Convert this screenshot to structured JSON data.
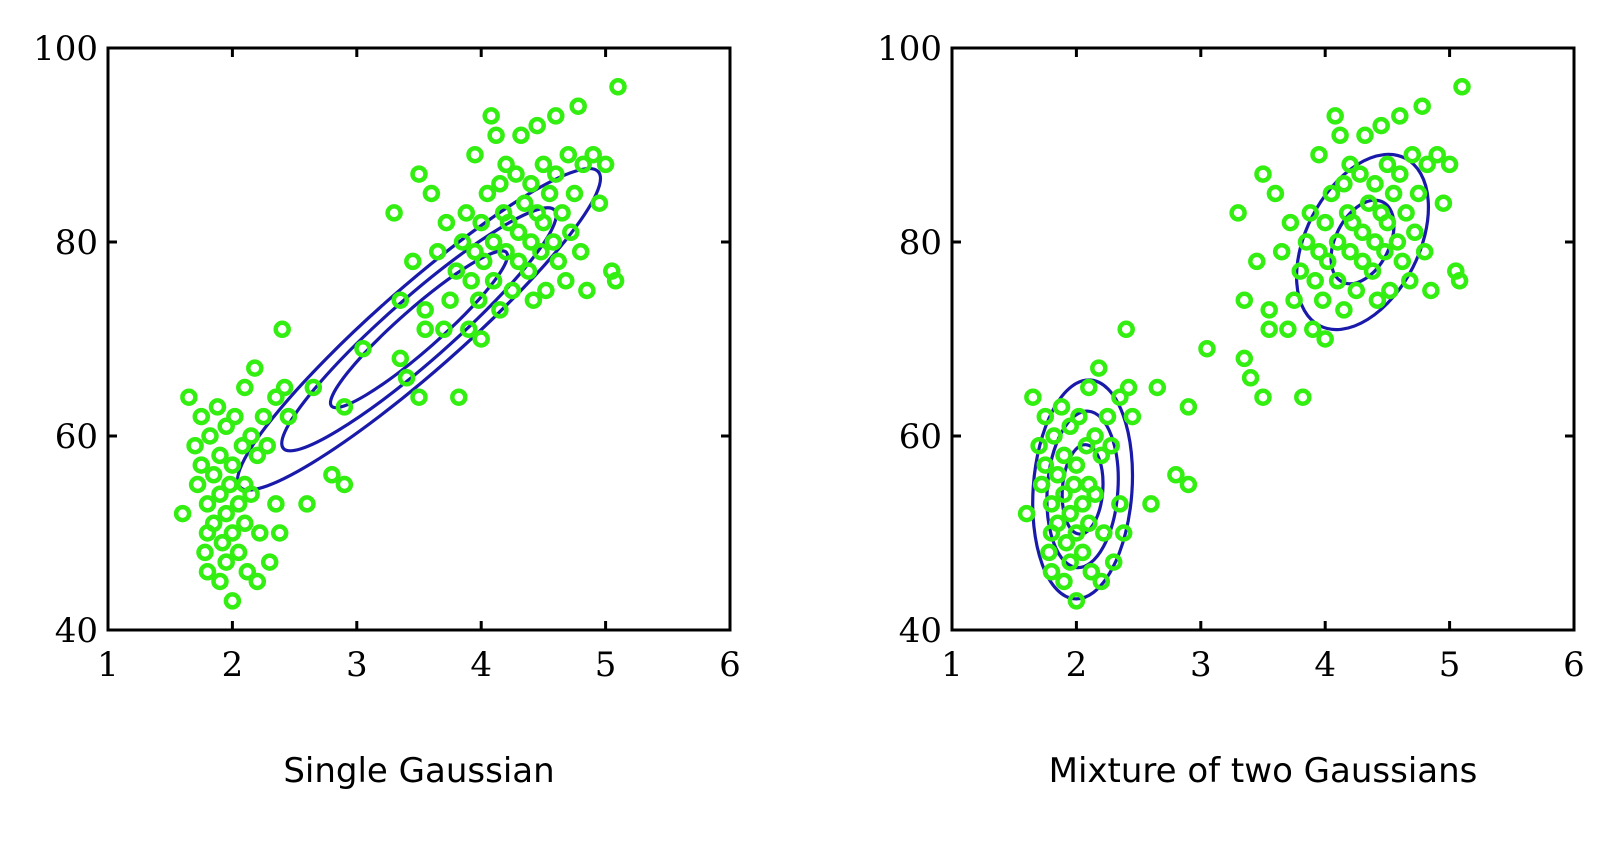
{
  "colors": {
    "points": "#33ee11",
    "contours": "#1a1aaa",
    "axes": "#000000",
    "background": "#ffffff"
  },
  "chart_data": [
    {
      "type": "scatter",
      "title": "",
      "caption": "Single Gaussian",
      "xlabel": "",
      "ylabel": "",
      "xlim": [
        1,
        6
      ],
      "ylim": [
        40,
        100
      ],
      "xticks": [
        1,
        2,
        3,
        4,
        5,
        6
      ],
      "yticks": [
        40,
        60,
        80,
        100
      ],
      "grid": false,
      "legend": "none",
      "points": [
        [
          1.6,
          52
        ],
        [
          1.65,
          64
        ],
        [
          1.7,
          59
        ],
        [
          1.72,
          55
        ],
        [
          1.75,
          62
        ],
        [
          1.75,
          57
        ],
        [
          1.78,
          48
        ],
        [
          1.8,
          50
        ],
        [
          1.8,
          53
        ],
        [
          1.8,
          46
        ],
        [
          1.82,
          60
        ],
        [
          1.85,
          56
        ],
        [
          1.85,
          51
        ],
        [
          1.88,
          63
        ],
        [
          1.9,
          45
        ],
        [
          1.9,
          54
        ],
        [
          1.9,
          58
        ],
        [
          1.92,
          49
        ],
        [
          1.95,
          61
        ],
        [
          1.95,
          52
        ],
        [
          1.95,
          47
        ],
        [
          1.98,
          55
        ],
        [
          2.0,
          43
        ],
        [
          2.0,
          50
        ],
        [
          2.0,
          57
        ],
        [
          2.02,
          62
        ],
        [
          2.05,
          53
        ],
        [
          2.05,
          48
        ],
        [
          2.08,
          59
        ],
        [
          2.1,
          65
        ],
        [
          2.1,
          51
        ],
        [
          2.1,
          55
        ],
        [
          2.12,
          46
        ],
        [
          2.15,
          60
        ],
        [
          2.15,
          54
        ],
        [
          2.18,
          67
        ],
        [
          2.2,
          45
        ],
        [
          2.2,
          58
        ],
        [
          2.22,
          50
        ],
        [
          2.25,
          62
        ],
        [
          2.28,
          59
        ],
        [
          2.3,
          47
        ],
        [
          2.35,
          53
        ],
        [
          2.35,
          64
        ],
        [
          2.38,
          50
        ],
        [
          2.4,
          71
        ],
        [
          2.42,
          65
        ],
        [
          2.45,
          62
        ],
        [
          2.6,
          53
        ],
        [
          2.65,
          65
        ],
        [
          2.8,
          56
        ],
        [
          2.9,
          63
        ],
        [
          2.9,
          55
        ],
        [
          3.05,
          69
        ],
        [
          3.3,
          83
        ],
        [
          3.35,
          74
        ],
        [
          3.35,
          68
        ],
        [
          3.4,
          66
        ],
        [
          3.45,
          78
        ],
        [
          3.5,
          64
        ],
        [
          3.5,
          87
        ],
        [
          3.55,
          71
        ],
        [
          3.55,
          73
        ],
        [
          3.6,
          85
        ],
        [
          3.65,
          79
        ],
        [
          3.7,
          71
        ],
        [
          3.72,
          82
        ],
        [
          3.75,
          74
        ],
        [
          3.8,
          77
        ],
        [
          3.82,
          64
        ],
        [
          3.85,
          80
        ],
        [
          3.88,
          83
        ],
        [
          3.9,
          71
        ],
        [
          3.92,
          76
        ],
        [
          3.95,
          89
        ],
        [
          3.95,
          79
        ],
        [
          3.98,
          74
        ],
        [
          4.0,
          70
        ],
        [
          4.0,
          82
        ],
        [
          4.02,
          78
        ],
        [
          4.05,
          85
        ],
        [
          4.08,
          93
        ],
        [
          4.1,
          76
        ],
        [
          4.1,
          80
        ],
        [
          4.12,
          91
        ],
        [
          4.15,
          86
        ],
        [
          4.15,
          73
        ],
        [
          4.18,
          83
        ],
        [
          4.2,
          79
        ],
        [
          4.2,
          88
        ],
        [
          4.22,
          82
        ],
        [
          4.25,
          75
        ],
        [
          4.28,
          87
        ],
        [
          4.3,
          81
        ],
        [
          4.3,
          78
        ],
        [
          4.32,
          91
        ],
        [
          4.35,
          84
        ],
        [
          4.38,
          77
        ],
        [
          4.4,
          86
        ],
        [
          4.4,
          80
        ],
        [
          4.42,
          74
        ],
        [
          4.45,
          92
        ],
        [
          4.45,
          83
        ],
        [
          4.48,
          79
        ],
        [
          4.5,
          88
        ],
        [
          4.5,
          82
        ],
        [
          4.52,
          75
        ],
        [
          4.55,
          85
        ],
        [
          4.58,
          80
        ],
        [
          4.6,
          93
        ],
        [
          4.6,
          87
        ],
        [
          4.62,
          78
        ],
        [
          4.65,
          83
        ],
        [
          4.68,
          76
        ],
        [
          4.7,
          89
        ],
        [
          4.72,
          81
        ],
        [
          4.75,
          85
        ],
        [
          4.78,
          94
        ],
        [
          4.8,
          79
        ],
        [
          4.82,
          88
        ],
        [
          4.85,
          75
        ],
        [
          4.9,
          89
        ],
        [
          4.95,
          84
        ],
        [
          5.0,
          88
        ],
        [
          5.05,
          77
        ],
        [
          5.08,
          76
        ],
        [
          5.1,
          96
        ]
      ],
      "contour_levels": 3
    },
    {
      "type": "scatter",
      "title": "",
      "caption": "Mixture of two Gaussians",
      "xlabel": "",
      "ylabel": "",
      "xlim": [
        1,
        6
      ],
      "ylim": [
        40,
        100
      ],
      "xticks": [
        1,
        2,
        3,
        4,
        5,
        6
      ],
      "yticks": [
        40,
        60,
        80,
        100
      ],
      "grid": false,
      "legend": "none",
      "points": [
        [
          1.6,
          52
        ],
        [
          1.65,
          64
        ],
        [
          1.7,
          59
        ],
        [
          1.72,
          55
        ],
        [
          1.75,
          62
        ],
        [
          1.75,
          57
        ],
        [
          1.78,
          48
        ],
        [
          1.8,
          50
        ],
        [
          1.8,
          53
        ],
        [
          1.8,
          46
        ],
        [
          1.82,
          60
        ],
        [
          1.85,
          56
        ],
        [
          1.85,
          51
        ],
        [
          1.88,
          63
        ],
        [
          1.9,
          45
        ],
        [
          1.9,
          54
        ],
        [
          1.9,
          58
        ],
        [
          1.92,
          49
        ],
        [
          1.95,
          61
        ],
        [
          1.95,
          52
        ],
        [
          1.95,
          47
        ],
        [
          1.98,
          55
        ],
        [
          2.0,
          43
        ],
        [
          2.0,
          50
        ],
        [
          2.0,
          57
        ],
        [
          2.02,
          62
        ],
        [
          2.05,
          53
        ],
        [
          2.05,
          48
        ],
        [
          2.08,
          59
        ],
        [
          2.1,
          65
        ],
        [
          2.1,
          51
        ],
        [
          2.1,
          55
        ],
        [
          2.12,
          46
        ],
        [
          2.15,
          60
        ],
        [
          2.15,
          54
        ],
        [
          2.18,
          67
        ],
        [
          2.2,
          45
        ],
        [
          2.2,
          58
        ],
        [
          2.22,
          50
        ],
        [
          2.25,
          62
        ],
        [
          2.28,
          59
        ],
        [
          2.3,
          47
        ],
        [
          2.35,
          53
        ],
        [
          2.35,
          64
        ],
        [
          2.38,
          50
        ],
        [
          2.4,
          71
        ],
        [
          2.42,
          65
        ],
        [
          2.45,
          62
        ],
        [
          2.6,
          53
        ],
        [
          2.65,
          65
        ],
        [
          2.8,
          56
        ],
        [
          2.9,
          63
        ],
        [
          2.9,
          55
        ],
        [
          3.05,
          69
        ],
        [
          3.3,
          83
        ],
        [
          3.35,
          74
        ],
        [
          3.35,
          68
        ],
        [
          3.4,
          66
        ],
        [
          3.45,
          78
        ],
        [
          3.5,
          64
        ],
        [
          3.5,
          87
        ],
        [
          3.55,
          71
        ],
        [
          3.55,
          73
        ],
        [
          3.6,
          85
        ],
        [
          3.65,
          79
        ],
        [
          3.7,
          71
        ],
        [
          3.72,
          82
        ],
        [
          3.75,
          74
        ],
        [
          3.8,
          77
        ],
        [
          3.82,
          64
        ],
        [
          3.85,
          80
        ],
        [
          3.88,
          83
        ],
        [
          3.9,
          71
        ],
        [
          3.92,
          76
        ],
        [
          3.95,
          89
        ],
        [
          3.95,
          79
        ],
        [
          3.98,
          74
        ],
        [
          4.0,
          70
        ],
        [
          4.0,
          82
        ],
        [
          4.02,
          78
        ],
        [
          4.05,
          85
        ],
        [
          4.08,
          93
        ],
        [
          4.1,
          76
        ],
        [
          4.1,
          80
        ],
        [
          4.12,
          91
        ],
        [
          4.15,
          86
        ],
        [
          4.15,
          73
        ],
        [
          4.18,
          83
        ],
        [
          4.2,
          79
        ],
        [
          4.2,
          88
        ],
        [
          4.22,
          82
        ],
        [
          4.25,
          75
        ],
        [
          4.28,
          87
        ],
        [
          4.3,
          81
        ],
        [
          4.3,
          78
        ],
        [
          4.32,
          91
        ],
        [
          4.35,
          84
        ],
        [
          4.38,
          77
        ],
        [
          4.4,
          86
        ],
        [
          4.4,
          80
        ],
        [
          4.42,
          74
        ],
        [
          4.45,
          92
        ],
        [
          4.45,
          83
        ],
        [
          4.48,
          79
        ],
        [
          4.5,
          88
        ],
        [
          4.5,
          82
        ],
        [
          4.52,
          75
        ],
        [
          4.55,
          85
        ],
        [
          4.58,
          80
        ],
        [
          4.6,
          93
        ],
        [
          4.6,
          87
        ],
        [
          4.62,
          78
        ],
        [
          4.65,
          83
        ],
        [
          4.68,
          76
        ],
        [
          4.7,
          89
        ],
        [
          4.72,
          81
        ],
        [
          4.75,
          85
        ],
        [
          4.78,
          94
        ],
        [
          4.8,
          79
        ],
        [
          4.82,
          88
        ],
        [
          4.85,
          75
        ],
        [
          4.9,
          89
        ],
        [
          4.95,
          84
        ],
        [
          5.0,
          88
        ],
        [
          5.05,
          77
        ],
        [
          5.08,
          76
        ],
        [
          5.1,
          96
        ]
      ],
      "contour_levels": 3
    }
  ]
}
